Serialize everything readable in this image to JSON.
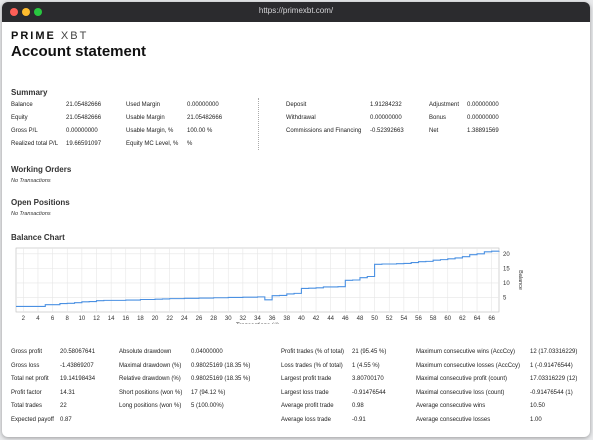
{
  "browser": {
    "url": "https://primexbt.com/"
  },
  "brand": {
    "logo_bold": "PRIME",
    "logo_light": "XBT"
  },
  "page_title": "Account statement",
  "summary": {
    "heading": "Summary",
    "col1": [
      {
        "label": "Balance",
        "value": "21.05482666"
      },
      {
        "label": "Equity",
        "value": "21.05482666"
      },
      {
        "label": "Gross P/L",
        "value": "0.00000000"
      },
      {
        "label": "Realized total P/L",
        "value": "19.66591097"
      }
    ],
    "col2": [
      {
        "label": "Used Margin",
        "value": "0.00000000"
      },
      {
        "label": "Usable Margin",
        "value": "21.05482666"
      },
      {
        "label": "Usable Margin, %",
        "value": "100.00 %"
      },
      {
        "label": "Equity MC Level, %",
        "value": "%"
      }
    ],
    "col3": [
      {
        "label": "Deposit",
        "value": "1.91284232"
      },
      {
        "label": "Withdrawal",
        "value": "0.00000000"
      },
      {
        "label": "Commissions and Financing",
        "value": "-0.52392663"
      }
    ],
    "col4": [
      {
        "label": "Adjustment",
        "value": "0.00000000"
      },
      {
        "label": "Bonus",
        "value": "0.00000000"
      },
      {
        "label": "Net",
        "value": "1.38891569"
      }
    ]
  },
  "working_orders": {
    "heading": "Working Orders",
    "empty": "No Transactions"
  },
  "open_positions": {
    "heading": "Open Positions",
    "empty": "No Transactions"
  },
  "balance_chart": {
    "heading": "Balance Chart"
  },
  "chart_data": {
    "type": "line",
    "xlabel": "Transactions (#)",
    "ylabel": "Balance",
    "x_ticks": [
      2,
      4,
      6,
      8,
      10,
      12,
      14,
      16,
      18,
      20,
      22,
      24,
      26,
      28,
      30,
      32,
      34,
      36,
      38,
      40,
      42,
      44,
      46,
      48,
      50,
      52,
      54,
      56,
      58,
      60,
      62,
      64,
      66
    ],
    "y_ticks": [
      5,
      10,
      15,
      20
    ],
    "xlim": [
      1,
      67
    ],
    "ylim": [
      0,
      22
    ],
    "grid": true,
    "series": [
      {
        "color": "#4a90e2",
        "x": [
          1,
          2,
          3,
          4,
          5,
          6,
          7,
          8,
          9,
          10,
          11,
          12,
          13,
          14,
          15,
          16,
          17,
          18,
          19,
          20,
          21,
          22,
          23,
          24,
          25,
          26,
          27,
          28,
          29,
          30,
          31,
          32,
          33,
          34,
          35,
          36,
          37,
          38,
          39,
          40,
          41,
          42,
          43,
          44,
          45,
          46,
          47,
          48,
          49,
          50,
          51,
          52,
          53,
          54,
          55,
          56,
          57,
          58,
          59,
          60,
          61,
          62,
          63,
          64,
          65,
          66,
          67
        ],
        "y": [
          1.9,
          1.9,
          1.9,
          1.9,
          2.5,
          2.5,
          2.9,
          3.0,
          3.2,
          3.5,
          3.6,
          3.9,
          4.0,
          4.0,
          4.0,
          4.1,
          4.1,
          4.3,
          4.3,
          4.4,
          4.5,
          4.6,
          4.6,
          4.7,
          4.7,
          4.8,
          4.8,
          4.9,
          4.9,
          5.0,
          5.0,
          5.1,
          5.1,
          5.2,
          4.2,
          5.6,
          5.7,
          6.2,
          6.4,
          8.1,
          8.2,
          8.3,
          8.6,
          8.6,
          8.7,
          10.9,
          11.0,
          11.8,
          12.2,
          16.4,
          16.5,
          16.5,
          16.6,
          16.7,
          17.0,
          17.3,
          17.4,
          17.8,
          18.0,
          18.3,
          18.6,
          19.0,
          19.7,
          20.0,
          20.7,
          20.9,
          21.0
        ]
      }
    ]
  },
  "stats": {
    "col1": [
      {
        "label": "Gross profit",
        "value": "20.58067641"
      },
      {
        "label": "Gross loss",
        "value": "-1.43869207"
      },
      {
        "label": "Total net profit",
        "value": "19.14198434"
      },
      {
        "label": "Profit factor",
        "value": "14.31"
      },
      {
        "label": "Total trades",
        "value": "22"
      },
      {
        "label": "Expected payoff",
        "value": "0.87"
      }
    ],
    "col2": [
      {
        "label": "Absolute drawdown",
        "value": "0.04000000"
      },
      {
        "label": "Maximal drawdown (%)",
        "value": "0.98025169  (18.35  %)"
      },
      {
        "label": "Relative drawdown (%)",
        "value": "0.98025169  (18.35  %)"
      },
      {
        "label": "Short positions (won %)",
        "value": "17  (94.12  %)"
      },
      {
        "label": "Long positions (won %)",
        "value": "5  (100.00%)"
      }
    ],
    "col3": [
      {
        "label": "Profit trades (% of total)",
        "value": "21  (95.45   %)"
      },
      {
        "label": "Loss trades (% of total)",
        "value": "1  (4.55   %)"
      },
      {
        "label": "Largest profit trade",
        "value": "3.80700170"
      },
      {
        "label": "Largest loss trade",
        "value": "-0.91476544"
      },
      {
        "label": "Average profit trade",
        "value": "0.98"
      },
      {
        "label": "Average loss trade",
        "value": "-0.91"
      }
    ],
    "col4": [
      {
        "label": "Maximum consecutive wins (AccCcy)",
        "value": "12  (17.03316229)"
      },
      {
        "label": "Maximum consecutive losses (AccCcy)",
        "value": "1  (-0.91476544)"
      },
      {
        "label": "Maximal consecutive profit (count)",
        "value": "17.03316229  (12)"
      },
      {
        "label": "Maximal consecutive loss (count)",
        "value": "-0.91476544  (1)"
      },
      {
        "label": "Average consecutive wins",
        "value": "10.50"
      },
      {
        "label": "Average consecutive losses",
        "value": "1.00"
      }
    ]
  }
}
